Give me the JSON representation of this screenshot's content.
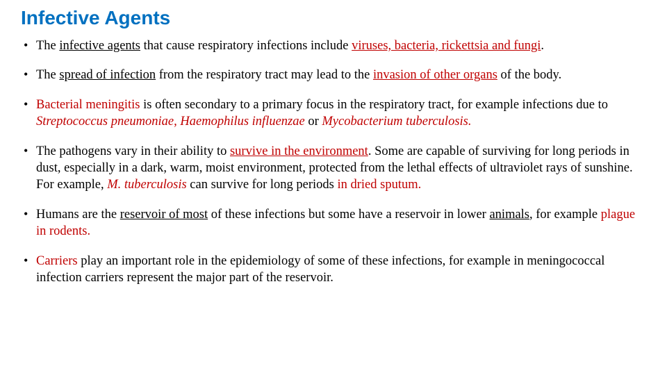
{
  "title": "Infective Agents",
  "colors": {
    "title": "#0070c0",
    "highlight": "#c00000",
    "body_text": "#000000",
    "background": "#ffffff"
  },
  "typography": {
    "title_font": "Comic Sans MS",
    "title_size_pt": 28,
    "body_font": "Times New Roman",
    "body_size_pt": 18.5,
    "line_height": 1.32
  },
  "bullets": [
    {
      "runs": [
        {
          "t": "The "
        },
        {
          "t": "infective agents",
          "u": true
        },
        {
          "t": " that cause respiratory infections include "
        },
        {
          "t": "viruses, bacteria, rickettsia and fungi",
          "u": true,
          "red": true
        },
        {
          "t": "."
        }
      ]
    },
    {
      "runs": [
        {
          "t": "The "
        },
        {
          "t": "spread of infection",
          "u": true
        },
        {
          "t": " from the respiratory tract may lead to the "
        },
        {
          "t": "invasion of other organs",
          "u": true,
          "red": true
        },
        {
          "t": " of the body."
        }
      ]
    },
    {
      "runs": [
        {
          "t": "Bacterial meningitis",
          "red": true
        },
        {
          "t": " is often secondary to a primary focus in the respiratory tract, for example infections due to "
        },
        {
          "t": "Streptococcus pneumoniae, Haemophilus influenzae ",
          "i": true,
          "red": true
        },
        {
          "t": "or "
        },
        {
          "t": "Mycobacterium tuberculosis.",
          "i": true,
          "red": true
        }
      ]
    },
    {
      "runs": [
        {
          "t": "The pathogens vary in their ability to "
        },
        {
          "t": "survive in the environment",
          "u": true,
          "red": true
        },
        {
          "t": ". Some are capable of surviving for long periods in dust, especially in a dark, warm, moist environment, protected from the lethal effects of ultraviolet rays of sunshine. For example, "
        },
        {
          "t": "M. tuberculosis",
          "i": true,
          "red": true
        },
        {
          "t": " can survive for long periods "
        },
        {
          "t": "in dried sputum.",
          "red": true
        }
      ]
    },
    {
      "runs": [
        {
          "t": " Humans are the "
        },
        {
          "t": "reservoir of most",
          "u": true
        },
        {
          "t": " of these infections but some have a reservoir in lower "
        },
        {
          "t": "animals",
          "u": true
        },
        {
          "t": ", for example "
        },
        {
          "t": "plague in rodents.",
          "red": true
        }
      ]
    },
    {
      "runs": [
        {
          "t": "Carriers",
          "red": true
        },
        {
          "t": " play an important role in the epidemiology of some of these infections, for example in meningococcal infection carriers represent the major part of the reservoir."
        }
      ]
    }
  ]
}
